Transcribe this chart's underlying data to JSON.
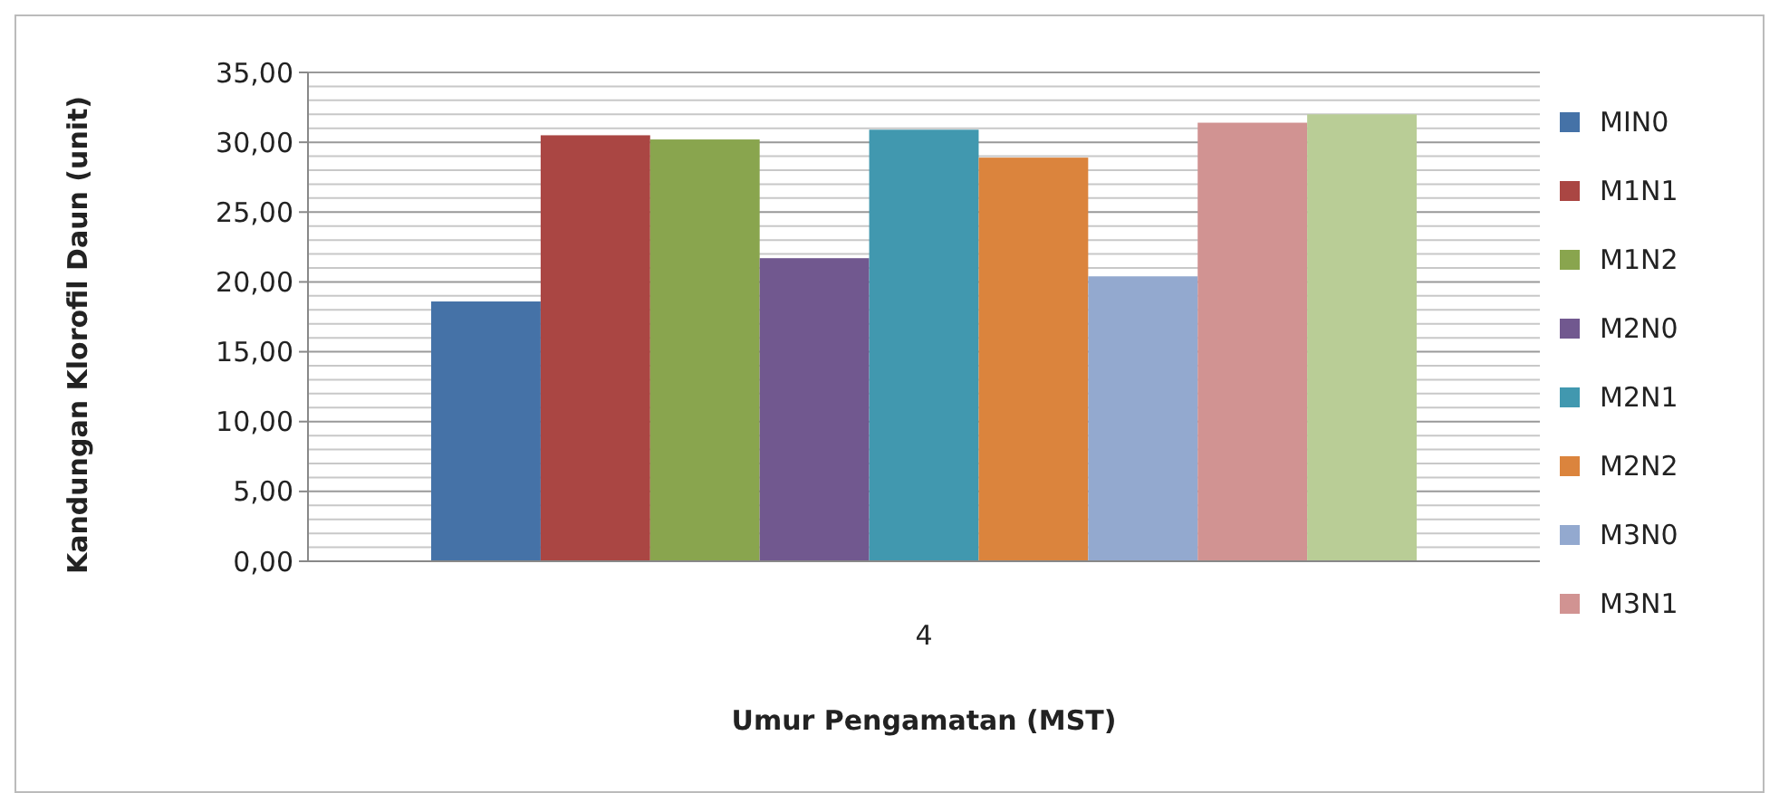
{
  "chart_data": {
    "type": "bar",
    "xlabel": "Umur Pengamatan (MST)",
    "ylabel": "Kandungan Klorofil Daun (unit)",
    "categories": [
      "4"
    ],
    "series": [
      {
        "name": "MIN0",
        "color": "#4572a7",
        "values": [
          18.6
        ]
      },
      {
        "name": "M1N1",
        "color": "#aa4643",
        "values": [
          30.5
        ]
      },
      {
        "name": "M1N2",
        "color": "#89a54e",
        "values": [
          30.2
        ]
      },
      {
        "name": "M2N0",
        "color": "#71588f",
        "values": [
          21.7
        ]
      },
      {
        "name": "M2N1",
        "color": "#4198af",
        "values": [
          30.9
        ]
      },
      {
        "name": "M2N2",
        "color": "#db843d",
        "values": [
          28.9
        ]
      },
      {
        "name": "M3N0",
        "color": "#93a9cf",
        "values": [
          20.4
        ]
      },
      {
        "name": "M3N1",
        "color": "#d19392",
        "values": [
          31.4
        ]
      },
      {
        "color": "#b9cd96",
        "values": [
          32.0
        ]
      }
    ],
    "ylim": [
      0,
      35
    ],
    "yticks": [
      {
        "value": 0,
        "label": "0,00"
      },
      {
        "value": 1,
        "label": null
      },
      {
        "value": 2,
        "label": null
      },
      {
        "value": 3,
        "label": null
      },
      {
        "value": 4,
        "label": null
      },
      {
        "value": 5,
        "label": "5,00"
      },
      {
        "value": 6,
        "label": null
      },
      {
        "value": 7,
        "label": null
      },
      {
        "value": 8,
        "label": null
      },
      {
        "value": 9,
        "label": null
      },
      {
        "value": 10,
        "label": "10,00"
      },
      {
        "value": 11,
        "label": null
      },
      {
        "value": 12,
        "label": null
      },
      {
        "value": 13,
        "label": null
      },
      {
        "value": 14,
        "label": null
      },
      {
        "value": 15,
        "label": "15,00"
      },
      {
        "value": 16,
        "label": null
      },
      {
        "value": 17,
        "label": null
      },
      {
        "value": 18,
        "label": null
      },
      {
        "value": 19,
        "label": null
      },
      {
        "value": 20,
        "label": "20,00"
      },
      {
        "value": 21,
        "label": null
      },
      {
        "value": 22,
        "label": null
      },
      {
        "value": 23,
        "label": null
      },
      {
        "value": 24,
        "label": null
      },
      {
        "value": 25,
        "label": "25,00"
      },
      {
        "value": 26,
        "label": null
      },
      {
        "value": 27,
        "label": null
      },
      {
        "value": 28,
        "label": null
      },
      {
        "value": 29,
        "label": null
      },
      {
        "value": 30,
        "label": "30,00"
      },
      {
        "value": 31,
        "label": null
      },
      {
        "value": 32,
        "label": null
      },
      {
        "value": 33,
        "label": null
      },
      {
        "value": 34,
        "label": null
      },
      {
        "value": 35,
        "label": "35,00"
      }
    ],
    "grid": "y",
    "legend": "right"
  }
}
